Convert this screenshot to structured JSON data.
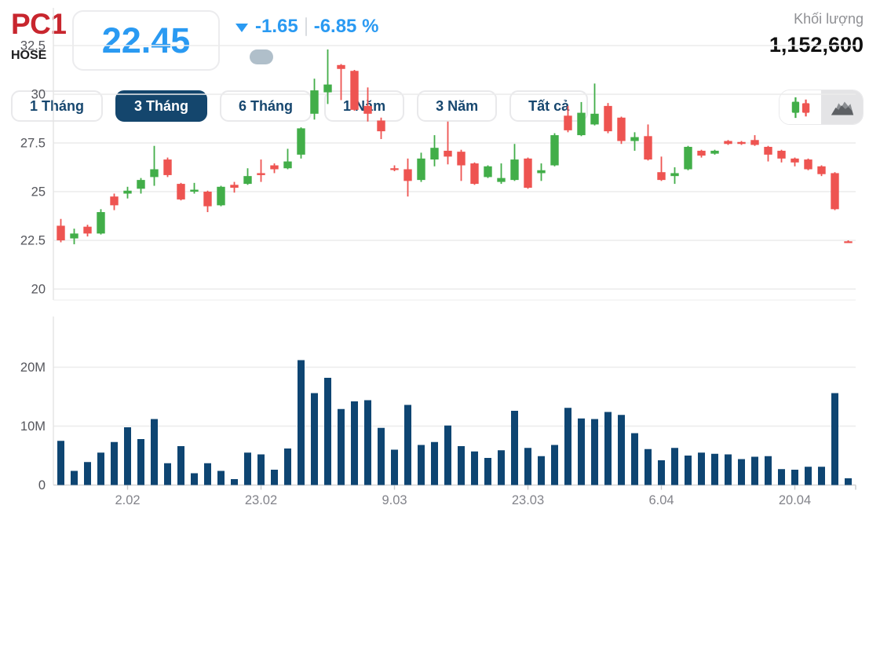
{
  "header": {
    "ticker": "PC1",
    "exchange": "HOSE",
    "price": "22.45",
    "change": "-1.65",
    "change_percent": "-6.85 %",
    "direction": "down",
    "volume_label": "Khối lượng",
    "volume_value": "1,152,600"
  },
  "tabs": [
    {
      "label": "1 Tháng",
      "active": false
    },
    {
      "label": "3 Tháng",
      "active": true
    },
    {
      "label": "6 Tháng",
      "active": false
    },
    {
      "label": "1 Năm",
      "active": false
    },
    {
      "label": "3 Năm",
      "active": false
    },
    {
      "label": "Tất cả",
      "active": false
    }
  ],
  "chart_toggle": {
    "candlestick_icon": "candlestick-view",
    "area_icon": "area-view",
    "selected": "area-view"
  },
  "colors": {
    "up_green": "#42ae49",
    "down_red": "#ee5451",
    "volume_bar": "#0e4572",
    "accent_blue": "#2a9af2",
    "ticker_red": "#c8262e",
    "tab_navy": "#14466d",
    "grid": "#ececec",
    "axis_line": "#d5d5d5",
    "price_label": "#55565c",
    "date_label": "#82838a"
  },
  "chart_data": {
    "type": "candlestick+volume",
    "title": "",
    "legend": "none",
    "grid": true,
    "price_axis": {
      "side": "left",
      "ticks": [
        {
          "v": 32.5,
          "label": "32.5"
        },
        {
          "v": 30,
          "label": "30"
        },
        {
          "v": 27.5,
          "label": "27.5"
        },
        {
          "v": 25,
          "label": "25"
        },
        {
          "v": 22.5,
          "label": "22.5"
        },
        {
          "v": 20,
          "label": "20"
        }
      ]
    },
    "volume_axis": {
      "side": "left",
      "unit": "millions",
      "ticks": [
        {
          "v": 20,
          "label": "20M"
        },
        {
          "v": 10,
          "label": "10M"
        },
        {
          "v": 0,
          "label": "0"
        }
      ]
    },
    "x_ticks": [
      {
        "index": 5,
        "label": "2.02"
      },
      {
        "index": 15,
        "label": "23.02"
      },
      {
        "index": 25,
        "label": "9.03"
      },
      {
        "index": 35,
        "label": "23.03"
      },
      {
        "index": 45,
        "label": "6.04"
      },
      {
        "index": 55,
        "label": "20.04"
      }
    ],
    "candles_ohlc": [
      [
        23.25,
        23.6,
        22.4,
        22.5
      ],
      [
        22.6,
        23.1,
        22.3,
        22.85
      ],
      [
        23.2,
        23.3,
        22.7,
        22.85
      ],
      [
        22.85,
        24.1,
        22.8,
        23.95
      ],
      [
        24.75,
        24.9,
        24.05,
        24.3
      ],
      [
        24.9,
        25.25,
        24.65,
        25.05
      ],
      [
        25.15,
        25.7,
        24.9,
        25.6
      ],
      [
        25.75,
        27.35,
        25.3,
        26.15
      ],
      [
        26.65,
        26.75,
        25.75,
        25.85
      ],
      [
        25.4,
        25.45,
        24.55,
        24.6
      ],
      [
        25.0,
        25.45,
        24.9,
        25.1
      ],
      [
        25.0,
        25.05,
        23.95,
        24.25
      ],
      [
        24.3,
        25.3,
        24.25,
        25.25
      ],
      [
        25.35,
        25.5,
        24.95,
        25.2
      ],
      [
        25.4,
        26.2,
        25.35,
        25.8
      ],
      [
        25.95,
        26.65,
        25.5,
        25.85
      ],
      [
        26.35,
        26.45,
        25.95,
        26.15
      ],
      [
        26.2,
        27.2,
        26.15,
        26.55
      ],
      [
        26.9,
        28.3,
        26.7,
        28.25
      ],
      [
        29.0,
        30.8,
        28.7,
        30.2
      ],
      [
        30.1,
        32.3,
        29.5,
        30.5
      ],
      [
        31.5,
        31.55,
        29.7,
        31.3
      ],
      [
        31.2,
        31.25,
        29.15,
        29.2
      ],
      [
        29.4,
        30.35,
        28.6,
        29.0
      ],
      [
        28.65,
        28.8,
        27.7,
        28.1
      ],
      [
        26.2,
        26.35,
        26.05,
        26.2
      ],
      [
        26.15,
        26.7,
        24.75,
        25.55
      ],
      [
        25.6,
        27.0,
        25.5,
        26.7
      ],
      [
        26.65,
        27.9,
        26.3,
        27.25
      ],
      [
        27.1,
        28.6,
        26.4,
        26.8
      ],
      [
        27.05,
        27.15,
        25.55,
        26.35
      ],
      [
        26.45,
        26.5,
        25.35,
        25.4
      ],
      [
        25.75,
        26.35,
        25.7,
        26.3
      ],
      [
        25.5,
        26.45,
        25.4,
        25.7
      ],
      [
        25.6,
        27.45,
        25.55,
        26.65
      ],
      [
        26.7,
        26.75,
        25.15,
        25.2
      ],
      [
        25.95,
        26.45,
        25.55,
        26.1
      ],
      [
        26.35,
        28.0,
        26.3,
        27.9
      ],
      [
        28.9,
        29.4,
        28.05,
        28.15
      ],
      [
        27.9,
        29.6,
        27.85,
        29.05
      ],
      [
        28.45,
        30.55,
        28.4,
        29.0
      ],
      [
        29.4,
        29.55,
        28.0,
        28.1
      ],
      [
        28.8,
        28.85,
        27.45,
        27.6
      ],
      [
        27.6,
        28.05,
        27.1,
        27.8
      ],
      [
        27.85,
        28.45,
        26.6,
        26.65
      ],
      [
        26.0,
        26.8,
        25.55,
        25.6
      ],
      [
        25.8,
        26.25,
        25.4,
        25.95
      ],
      [
        26.15,
        27.35,
        26.1,
        27.3
      ],
      [
        27.1,
        27.15,
        26.75,
        26.85
      ],
      [
        26.95,
        27.15,
        26.9,
        27.1
      ],
      [
        27.6,
        27.65,
        27.4,
        27.45
      ],
      [
        27.55,
        27.6,
        27.4,
        27.45
      ],
      [
        27.65,
        27.9,
        27.35,
        27.4
      ],
      [
        27.3,
        27.35,
        26.55,
        26.9
      ],
      [
        27.1,
        27.15,
        26.5,
        26.7
      ],
      [
        26.7,
        26.75,
        26.3,
        26.5
      ],
      [
        26.65,
        26.7,
        26.1,
        26.15
      ],
      [
        26.3,
        26.35,
        25.8,
        25.9
      ],
      [
        25.95,
        26.0,
        24.05,
        24.1
      ],
      [
        22.45,
        22.5,
        22.4,
        22.45
      ]
    ],
    "volumes_millions": [
      7.5,
      2.4,
      3.9,
      5.5,
      7.3,
      9.8,
      7.8,
      11.2,
      3.7,
      6.6,
      2.0,
      3.7,
      2.4,
      1.0,
      5.5,
      5.2,
      2.6,
      6.2,
      21.2,
      15.6,
      18.2,
      12.9,
      14.2,
      14.4,
      9.7,
      6.0,
      13.6,
      6.8,
      7.3,
      10.1,
      6.6,
      5.7,
      4.6,
      5.9,
      12.6,
      6.3,
      4.9,
      6.8,
      13.1,
      11.3,
      11.2,
      12.4,
      11.9,
      8.8,
      6.1,
      4.2,
      6.3,
      5.0,
      5.5,
      5.3,
      5.2,
      4.4,
      4.8,
      4.9,
      2.7,
      2.6,
      3.1,
      3.1,
      15.6,
      1.15
    ]
  }
}
